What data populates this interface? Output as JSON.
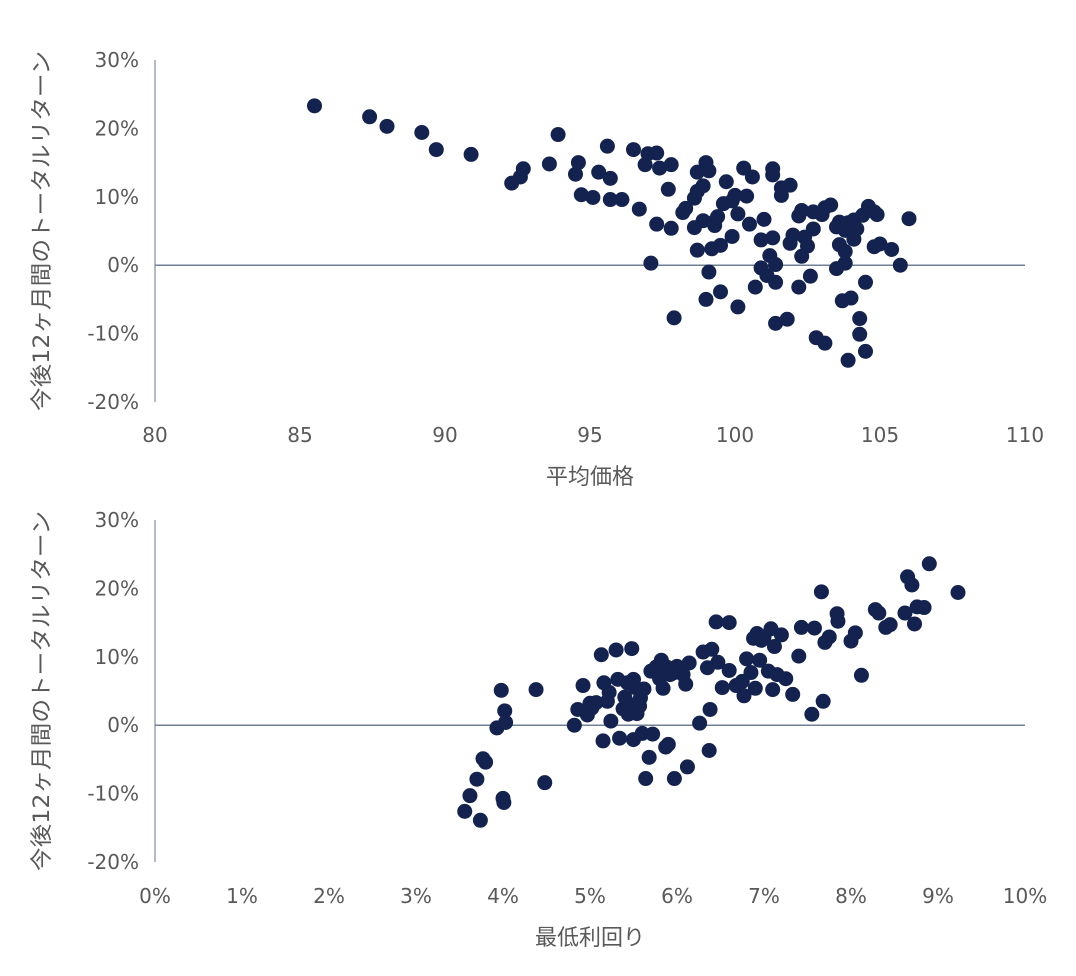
{
  "chart_data": [
    {
      "type": "scatter",
      "xlabel": "平均価格",
      "ylabel": "今後12ヶ月間のトータルリターン",
      "xlim": [
        80,
        110
      ],
      "ylim": [
        -20,
        30
      ],
      "x_ticks": [
        "80",
        "85",
        "90",
        "95",
        "100",
        "105",
        "110"
      ],
      "y_ticks": [
        "30%",
        "20%",
        "10%",
        "0%",
        "-10%",
        "-20%"
      ],
      "color": "#13224e",
      "points": [
        [
          85.5,
          23.3
        ],
        [
          87.4,
          21.7
        ],
        [
          88.0,
          20.3
        ],
        [
          89.2,
          19.4
        ],
        [
          89.7,
          16.9
        ],
        [
          90.9,
          16.2
        ],
        [
          92.3,
          12.0
        ],
        [
          92.6,
          12.9
        ],
        [
          92.7,
          14.1
        ],
        [
          93.6,
          14.8
        ],
        [
          93.9,
          19.1
        ],
        [
          94.5,
          13.3
        ],
        [
          94.6,
          15.0
        ],
        [
          94.7,
          10.3
        ],
        [
          95.1,
          9.9
        ],
        [
          95.3,
          13.6
        ],
        [
          95.6,
          17.4
        ],
        [
          95.7,
          12.7
        ],
        [
          95.7,
          9.6
        ],
        [
          96.1,
          9.6
        ],
        [
          96.5,
          16.9
        ],
        [
          96.7,
          8.2
        ],
        [
          96.9,
          14.7
        ],
        [
          97.0,
          16.3
        ],
        [
          97.1,
          0.3
        ],
        [
          97.3,
          6.0
        ],
        [
          97.3,
          16.4
        ],
        [
          97.4,
          14.2
        ],
        [
          97.7,
          11.1
        ],
        [
          97.8,
          14.7
        ],
        [
          97.8,
          5.4
        ],
        [
          97.9,
          -7.7
        ],
        [
          98.2,
          7.7
        ],
        [
          98.3,
          8.3
        ],
        [
          98.6,
          9.8
        ],
        [
          98.6,
          5.5
        ],
        [
          98.7,
          2.2
        ],
        [
          98.7,
          13.6
        ],
        [
          98.7,
          10.8
        ],
        [
          98.9,
          11.6
        ],
        [
          98.9,
          6.5
        ],
        [
          99.0,
          -5.0
        ],
        [
          99.0,
          15.0
        ],
        [
          99.1,
          13.8
        ],
        [
          99.1,
          -1.0
        ],
        [
          99.2,
          2.4
        ],
        [
          99.3,
          6.4
        ],
        [
          99.3,
          5.8
        ],
        [
          99.4,
          7.1
        ],
        [
          99.5,
          -3.9
        ],
        [
          99.5,
          2.9
        ],
        [
          99.6,
          9.0
        ],
        [
          99.7,
          12.2
        ],
        [
          99.9,
          9.4
        ],
        [
          99.9,
          4.2
        ],
        [
          100.0,
          10.2
        ],
        [
          100.1,
          7.5
        ],
        [
          100.1,
          -6.1
        ],
        [
          100.3,
          14.2
        ],
        [
          100.4,
          10.1
        ],
        [
          100.5,
          6.0
        ],
        [
          100.6,
          12.9
        ],
        [
          100.7,
          -3.2
        ],
        [
          100.9,
          -0.4
        ],
        [
          100.9,
          3.7
        ],
        [
          101.0,
          6.7
        ],
        [
          101.1,
          -1.5
        ],
        [
          101.2,
          1.4
        ],
        [
          101.3,
          4.0
        ],
        [
          101.3,
          13.2
        ],
        [
          101.3,
          14.1
        ],
        [
          101.4,
          -2.5
        ],
        [
          101.4,
          0.1
        ],
        [
          101.4,
          -8.5
        ],
        [
          101.6,
          10.2
        ],
        [
          101.6,
          11.3
        ],
        [
          101.8,
          -7.9
        ],
        [
          101.9,
          11.7
        ],
        [
          101.9,
          3.2
        ],
        [
          102.0,
          4.4
        ],
        [
          102.2,
          7.2
        ],
        [
          102.2,
          -3.2
        ],
        [
          102.3,
          8.0
        ],
        [
          102.3,
          1.3
        ],
        [
          102.4,
          4.1
        ],
        [
          102.5,
          2.8
        ],
        [
          102.6,
          -1.6
        ],
        [
          102.7,
          7.8
        ],
        [
          102.7,
          5.3
        ],
        [
          102.8,
          -10.6
        ],
        [
          103.0,
          7.4
        ],
        [
          103.1,
          -11.4
        ],
        [
          103.1,
          8.4
        ],
        [
          103.3,
          8.8
        ],
        [
          103.5,
          -0.5
        ],
        [
          103.5,
          5.6
        ],
        [
          103.6,
          6.3
        ],
        [
          103.6,
          3.0
        ],
        [
          103.7,
          -5.2
        ],
        [
          103.8,
          0.3
        ],
        [
          103.8,
          5.1
        ],
        [
          103.8,
          2.0
        ],
        [
          103.9,
          6.2
        ],
        [
          103.9,
          -13.9
        ],
        [
          104.0,
          -4.8
        ],
        [
          104.1,
          3.8
        ],
        [
          104.1,
          6.6
        ],
        [
          104.2,
          5.3
        ],
        [
          104.3,
          -10.1
        ],
        [
          104.3,
          -7.8
        ],
        [
          104.4,
          7.3
        ],
        [
          104.5,
          -12.6
        ],
        [
          104.5,
          -2.5
        ],
        [
          104.6,
          8.6
        ],
        [
          104.8,
          2.7
        ],
        [
          104.8,
          7.8
        ],
        [
          104.9,
          7.4
        ],
        [
          105.0,
          3.1
        ],
        [
          105.4,
          2.3
        ],
        [
          105.7,
          0.0
        ],
        [
          106.0,
          6.8
        ]
      ]
    },
    {
      "type": "scatter",
      "xlabel": "最低利回り",
      "ylabel": "今後12ヶ月間のトータルリターン",
      "xlim": [
        0,
        10
      ],
      "ylim": [
        -20,
        30
      ],
      "x_ticks": [
        "0%",
        "1%",
        "2%",
        "3%",
        "4%",
        "5%",
        "6%",
        "7%",
        "8%",
        "9%",
        "10%"
      ],
      "y_ticks": [
        "30%",
        "20%",
        "10%",
        "0%",
        "-10%",
        "-20%"
      ],
      "color": "#13224e",
      "points": [
        [
          3.56,
          -12.6
        ],
        [
          3.62,
          -10.3
        ],
        [
          3.7,
          -7.9
        ],
        [
          3.74,
          -13.9
        ],
        [
          3.77,
          -4.9
        ],
        [
          3.8,
          -5.4
        ],
        [
          3.93,
          -0.4
        ],
        [
          3.98,
          5.1
        ],
        [
          4.0,
          -10.7
        ],
        [
          4.01,
          -11.3
        ],
        [
          4.02,
          2.1
        ],
        [
          4.03,
          0.4
        ],
        [
          4.38,
          5.2
        ],
        [
          4.48,
          -8.4
        ],
        [
          4.82,
          0.0
        ],
        [
          4.86,
          2.3
        ],
        [
          4.92,
          5.8
        ],
        [
          4.97,
          1.5
        ],
        [
          5.0,
          3.2
        ],
        [
          5.02,
          2.5
        ],
        [
          5.07,
          3.3
        ],
        [
          5.13,
          10.3
        ],
        [
          5.15,
          -2.3
        ],
        [
          5.16,
          6.2
        ],
        [
          5.2,
          3.5
        ],
        [
          5.22,
          4.8
        ],
        [
          5.24,
          0.6
        ],
        [
          5.3,
          11.0
        ],
        [
          5.32,
          6.7
        ],
        [
          5.34,
          -1.9
        ],
        [
          5.38,
          2.4
        ],
        [
          5.4,
          4.1
        ],
        [
          5.43,
          6.2
        ],
        [
          5.44,
          1.6
        ],
        [
          5.46,
          3.0
        ],
        [
          5.48,
          11.2
        ],
        [
          5.5,
          6.7
        ],
        [
          5.5,
          -2.1
        ],
        [
          5.52,
          5.5
        ],
        [
          5.54,
          1.7
        ],
        [
          5.57,
          2.8
        ],
        [
          5.58,
          4.0
        ],
        [
          5.6,
          -1.2
        ],
        [
          5.62,
          5.3
        ],
        [
          5.64,
          -7.8
        ],
        [
          5.68,
          -4.7
        ],
        [
          5.7,
          7.9
        ],
        [
          5.72,
          -1.3
        ],
        [
          5.76,
          8.5
        ],
        [
          5.8,
          6.8
        ],
        [
          5.82,
          9.5
        ],
        [
          5.84,
          5.4
        ],
        [
          5.87,
          -3.2
        ],
        [
          5.88,
          8.5
        ],
        [
          5.9,
          -2.8
        ],
        [
          5.92,
          7.4
        ],
        [
          5.95,
          7.6
        ],
        [
          5.97,
          -7.8
        ],
        [
          6.0,
          8.6
        ],
        [
          6.07,
          7.4
        ],
        [
          6.1,
          6.0
        ],
        [
          6.12,
          -6.1
        ],
        [
          6.14,
          9.1
        ],
        [
          6.26,
          0.3
        ],
        [
          6.3,
          10.7
        ],
        [
          6.35,
          8.4
        ],
        [
          6.37,
          -3.7
        ],
        [
          6.38,
          2.3
        ],
        [
          6.4,
          11.1
        ],
        [
          6.45,
          15.1
        ],
        [
          6.47,
          9.2
        ],
        [
          6.52,
          5.5
        ],
        [
          6.6,
          15.0
        ],
        [
          6.6,
          8.0
        ],
        [
          6.68,
          5.8
        ],
        [
          6.75,
          6.4
        ],
        [
          6.77,
          4.3
        ],
        [
          6.8,
          9.7
        ],
        [
          6.85,
          7.7
        ],
        [
          6.88,
          12.7
        ],
        [
          6.9,
          5.4
        ],
        [
          6.92,
          13.4
        ],
        [
          6.95,
          9.5
        ],
        [
          6.97,
          12.4
        ],
        [
          7.0,
          12.9
        ],
        [
          7.05,
          7.9
        ],
        [
          7.08,
          14.1
        ],
        [
          7.1,
          5.2
        ],
        [
          7.12,
          11.5
        ],
        [
          7.15,
          7.4
        ],
        [
          7.2,
          13.2
        ],
        [
          7.25,
          6.8
        ],
        [
          7.33,
          4.5
        ],
        [
          7.4,
          10.1
        ],
        [
          7.43,
          14.3
        ],
        [
          7.55,
          1.6
        ],
        [
          7.58,
          14.2
        ],
        [
          7.66,
          19.5
        ],
        [
          7.68,
          3.5
        ],
        [
          7.7,
          12.1
        ],
        [
          7.75,
          12.9
        ],
        [
          7.84,
          16.3
        ],
        [
          7.85,
          15.2
        ],
        [
          8.0,
          12.3
        ],
        [
          8.05,
          13.5
        ],
        [
          8.12,
          7.3
        ],
        [
          8.28,
          16.9
        ],
        [
          8.32,
          16.4
        ],
        [
          8.4,
          14.3
        ],
        [
          8.45,
          14.7
        ],
        [
          8.62,
          16.4
        ],
        [
          8.65,
          21.7
        ],
        [
          8.7,
          20.5
        ],
        [
          8.73,
          14.8
        ],
        [
          8.76,
          17.3
        ],
        [
          8.84,
          17.2
        ],
        [
          8.9,
          23.6
        ],
        [
          9.23,
          19.4
        ]
      ]
    }
  ]
}
